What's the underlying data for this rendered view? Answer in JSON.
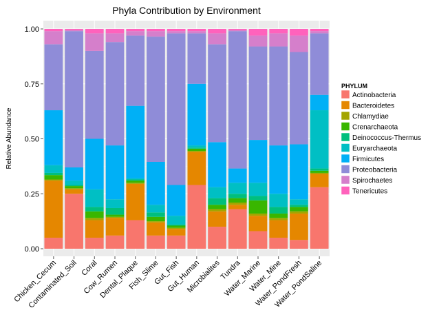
{
  "chart_data": {
    "type": "stacked_bar",
    "title": "Phyla Contribution by Environment",
    "y_label": "Relative Abundance",
    "legend_title": "PHYLUM",
    "legend_position": "right",
    "grid": true,
    "categories": [
      "Chicken_Cecum",
      "Contaminated_Soil",
      "Coral",
      "Cow_Rumen",
      "Dental_Plaque",
      "Fish_Slime",
      "Gut_Fish",
      "Gut_Human",
      "Microbialites",
      "Tundra",
      "Water_Marine",
      "Water_Mine",
      "Water_PondFresh",
      "Water_PondSaline"
    ],
    "ylim": [
      0,
      1
    ],
    "yticks": [
      {
        "value": 0,
        "label": "0.00"
      },
      {
        "value": 0.25,
        "label": "0.25"
      },
      {
        "value": 0.5,
        "label": "0.50"
      },
      {
        "value": 0.75,
        "label": "0.75"
      },
      {
        "value": 1,
        "label": "1.00"
      }
    ],
    "series": [
      {
        "name": "Actinobacteria",
        "color": "#F8766D",
        "values": [
          0.05,
          0.25,
          0.05,
          0.06,
          0.13,
          0.06,
          0.06,
          0.29,
          0.1,
          0.18,
          0.08,
          0.05,
          0.04,
          0.28
        ]
      },
      {
        "name": "Bacteroidetes",
        "color": "#E58700",
        "values": [
          0.26,
          0.02,
          0.08,
          0.08,
          0.165,
          0.06,
          0.03,
          0.15,
          0.07,
          0.02,
          0.07,
          0.08,
          0.12,
          0.06
        ]
      },
      {
        "name": "Chlamydiae",
        "color": "#A3A500",
        "values": [
          0.005,
          0.005,
          0.01,
          0.005,
          0.005,
          0.005,
          0.005,
          0.005,
          0.01,
          0.01,
          0.01,
          0.01,
          0.01,
          0.005
        ]
      },
      {
        "name": "Crenarchaeota",
        "color": "#39B600",
        "values": [
          0.02,
          0.01,
          0.03,
          0.01,
          0.01,
          0.02,
          0.01,
          0.01,
          0.02,
          0.02,
          0.06,
          0.02,
          0.02,
          0.01
        ]
      },
      {
        "name": "Deinococcus-Thermus",
        "color": "#00BF7D",
        "values": [
          0.01,
          0.005,
          0.02,
          0.03,
          0.005,
          0.02,
          0.005,
          0.005,
          0.03,
          0.02,
          0.02,
          0.03,
          0.01,
          0.01
        ]
      },
      {
        "name": "Euryarchaeota",
        "color": "#00BFC4",
        "values": [
          0.035,
          0.02,
          0.08,
          0.04,
          0.005,
          0.035,
          0.04,
          0.01,
          0.05,
          0.05,
          0.06,
          0.06,
          0.025,
          0.265
        ]
      },
      {
        "name": "Firmicutes",
        "color": "#00B0F6",
        "values": [
          0.25,
          0.06,
          0.23,
          0.245,
          0.33,
          0.195,
          0.14,
          0.28,
          0.205,
          0.065,
          0.195,
          0.22,
          0.25,
          0.07
        ]
      },
      {
        "name": "Proteobacteria",
        "color": "#8F8CD8",
        "values": [
          0.3,
          0.62,
          0.4,
          0.47,
          0.32,
          0.57,
          0.69,
          0.23,
          0.445,
          0.625,
          0.425,
          0.45,
          0.42,
          0.28
        ]
      },
      {
        "name": "Spirochaetes",
        "color": "#D57FCB",
        "values": [
          0.06,
          0.005,
          0.08,
          0.04,
          0.02,
          0.025,
          0.01,
          0.01,
          0.05,
          0.005,
          0.05,
          0.06,
          0.075,
          0.01
        ]
      },
      {
        "name": "Tenericutes",
        "color": "#FF62BC",
        "values": [
          0.01,
          0.005,
          0.02,
          0.02,
          0.01,
          0.01,
          0.01,
          0.01,
          0.02,
          0.005,
          0.03,
          0.02,
          0.03,
          0.01
        ]
      }
    ]
  }
}
